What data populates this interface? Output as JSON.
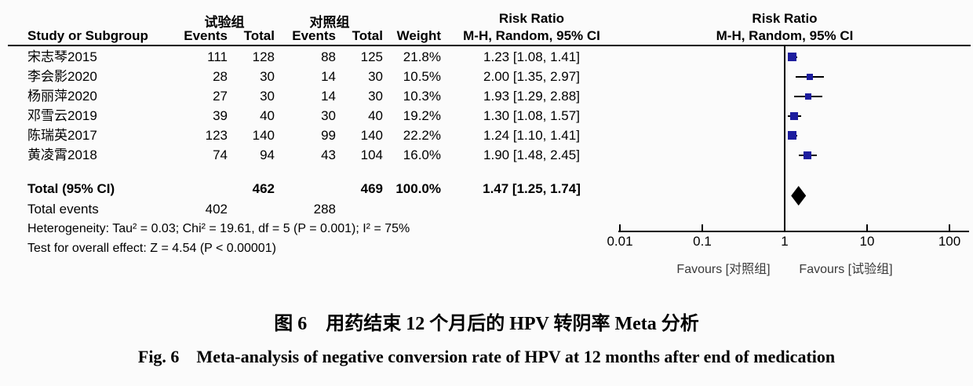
{
  "table": {
    "header": {
      "group_experimental": "试验组",
      "group_control": "对照组",
      "study": "Study or Subgroup",
      "events": "Events",
      "total": "Total",
      "weight": "Weight",
      "risk_ratio": "Risk Ratio",
      "mh_ci": "M-H, Random, 95% CI"
    },
    "rows": [
      {
        "study": "宋志琴2015",
        "e1": "111",
        "t1": "128",
        "e2": "88",
        "t2": "125",
        "weight": "21.8%",
        "ci": "1.23 [1.08, 1.41]"
      },
      {
        "study": "李会影2020",
        "e1": "28",
        "t1": "30",
        "e2": "14",
        "t2": "30",
        "weight": "10.5%",
        "ci": "2.00 [1.35, 2.97]"
      },
      {
        "study": "杨丽萍2020",
        "e1": "27",
        "t1": "30",
        "e2": "14",
        "t2": "30",
        "weight": "10.3%",
        "ci": "1.93 [1.29, 2.88]"
      },
      {
        "study": "邓雪云2019",
        "e1": "39",
        "t1": "40",
        "e2": "30",
        "t2": "40",
        "weight": "19.2%",
        "ci": "1.30 [1.08, 1.57]"
      },
      {
        "study": "陈瑞英2017",
        "e1": "123",
        "t1": "140",
        "e2": "99",
        "t2": "140",
        "weight": "22.2%",
        "ci": "1.24 [1.10, 1.41]"
      },
      {
        "study": "黄凌霄2018",
        "e1": "74",
        "t1": "94",
        "e2": "43",
        "t2": "104",
        "weight": "16.0%",
        "ci": "1.90 [1.48, 2.45]"
      }
    ],
    "total_row": {
      "label": "Total (95% CI)",
      "t1": "462",
      "t2": "469",
      "weight": "100.0%",
      "ci": "1.47 [1.25, 1.74]"
    },
    "total_events": {
      "label": "Total events",
      "e1": "402",
      "e2": "288"
    },
    "heterogeneity": "Heterogeneity: Tau² = 0.03; Chi² = 19.61, df = 5 (P = 0.001); I² = 75%",
    "overall_effect": "Test for overall effect: Z = 4.54 (P < 0.00001)"
  },
  "chart_data": {
    "type": "scatter",
    "subtype": "forest-plot",
    "title": "Risk Ratio, M-H, Random, 95% CI",
    "x_scale": "log10",
    "x_range": [
      0.01,
      100
    ],
    "x_ticks": [
      0.01,
      0.1,
      1,
      10,
      100
    ],
    "ref_line": 1,
    "series": [
      {
        "label": "宋志琴2015",
        "rr": 1.23,
        "ci_low": 1.08,
        "ci_high": 1.41,
        "weight_pct": 21.8
      },
      {
        "label": "李会影2020",
        "rr": 2.0,
        "ci_low": 1.35,
        "ci_high": 2.97,
        "weight_pct": 10.5
      },
      {
        "label": "杨丽萍2020",
        "rr": 1.93,
        "ci_low": 1.29,
        "ci_high": 2.88,
        "weight_pct": 10.3
      },
      {
        "label": "邓雪云2019",
        "rr": 1.3,
        "ci_low": 1.08,
        "ci_high": 1.57,
        "weight_pct": 19.2
      },
      {
        "label": "陈瑞英2017",
        "rr": 1.24,
        "ci_low": 1.1,
        "ci_high": 1.41,
        "weight_pct": 22.2
      },
      {
        "label": "黄凌霄2018",
        "rr": 1.9,
        "ci_low": 1.48,
        "ci_high": 2.45,
        "weight_pct": 16.0
      }
    ],
    "summary": {
      "label": "Total (95% CI)",
      "rr": 1.47,
      "ci_low": 1.25,
      "ci_high": 1.74,
      "weight_pct": 100.0
    },
    "favours_left": "Favours [对照组]",
    "favours_right": "Favours [试验组]",
    "marker_color": "#1c1c9e",
    "summary_color": "#000000",
    "legend_position": "none",
    "grid": false
  },
  "caption": {
    "zh": "图 6　用药结束 12 个月后的 HPV 转阴率 Meta 分析",
    "en": "Fig. 6　Meta-analysis of negative conversion rate of HPV at 12 months after end of medication"
  }
}
